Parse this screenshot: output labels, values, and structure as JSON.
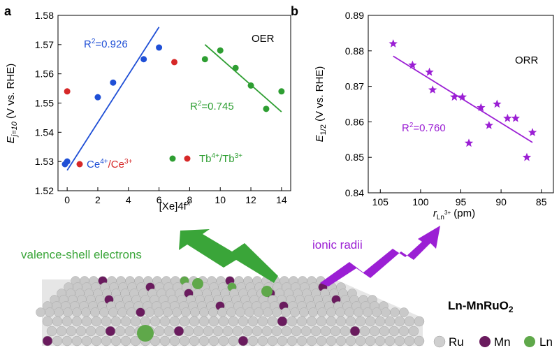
{
  "panel_a_label": "a",
  "panel_b_label": "b",
  "colors": {
    "blue": "#1f4fd6",
    "red": "#d62828",
    "green": "#2e9e32",
    "purple": "#9b1fd4",
    "mn": "#6a1b5e",
    "ru": "#c9c9c9",
    "ln": "#5fa84a"
  },
  "chart_data": [
    {
      "type": "scatter",
      "panel": "a",
      "ylabel": "E",
      "ylabel_sub": "j=10",
      "ylabel_rest": " (V vs. RHE)",
      "xlabel": "[Xe]4f",
      "xlabel_sup": "x",
      "xlim": [
        -0.6,
        14.6
      ],
      "ylim": [
        1.52,
        1.58
      ],
      "xticks": [
        "0",
        "2",
        "4",
        "6",
        "8",
        "10",
        "12",
        "14"
      ],
      "yticks": [
        "1.52",
        "1.53",
        "1.54",
        "1.55",
        "1.56",
        "1.57",
        "1.58"
      ],
      "annotation": "OER",
      "series": [
        {
          "name": "Ce4+/Ce3+",
          "color": "blue",
          "x": [
            0,
            2,
            3,
            5,
            6
          ],
          "y": [
            1.53,
            1.552,
            1.557,
            1.565,
            1.569
          ]
        },
        {
          "name": "Tb4+/Tb3+",
          "color": "green",
          "x": [
            9,
            10,
            11,
            12,
            13,
            14
          ],
          "y": [
            1.565,
            1.568,
            1.562,
            1.556,
            1.548,
            1.554
          ]
        },
        {
          "color": "red",
          "x": [
            0,
            7
          ],
          "y": [
            1.554,
            1.564
          ]
        }
      ],
      "fits": [
        {
          "color": "blue",
          "x": [
            0,
            6
          ],
          "y": [
            1.527,
            1.576
          ],
          "label": "R",
          "label_sup": "2",
          "label_rest": "=0.926"
        },
        {
          "color": "green",
          "x": [
            9,
            14
          ],
          "y": [
            1.57,
            1.547
          ],
          "label": "R",
          "label_sup": "2",
          "label_rest": "=0.745"
        }
      ],
      "legend": [
        {
          "base": "Ce",
          "sup1": "4+",
          "mid": "/Ce",
          "sup2": "3+"
        },
        {
          "base": "Tb",
          "sup1": "4+",
          "mid": "/Tb",
          "sup2": "3+"
        }
      ]
    },
    {
      "type": "scatter",
      "panel": "b",
      "ylabel": "E",
      "ylabel_sub": "1/2",
      "ylabel_rest": " (V vs. RHE)",
      "xlabel": "r",
      "xlabel_sub": "Ln",
      "xlabel_subsup": "3+",
      "xlabel_rest": " (pm)",
      "xlim": [
        106.5,
        83.5
      ],
      "ylim": [
        0.84,
        0.89
      ],
      "xticks": [
        "105",
        "100",
        "95",
        "90",
        "85"
      ],
      "yticks": [
        "0.84",
        "0.85",
        "0.86",
        "0.87",
        "0.88",
        "0.89"
      ],
      "annotation": "ORR",
      "series": [
        {
          "color": "purple",
          "x": [
            103.4,
            101.0,
            98.9,
            98.5,
            95.8,
            94.8,
            94.0,
            92.5,
            91.5,
            90.5,
            89.2,
            88.2,
            86.8,
            86.1
          ],
          "y": [
            0.882,
            0.876,
            0.874,
            0.869,
            0.867,
            0.867,
            0.854,
            0.864,
            0.859,
            0.865,
            0.861,
            0.861,
            0.85,
            0.857
          ]
        }
      ],
      "fits": [
        {
          "color": "purple",
          "x": [
            103.4,
            86.1
          ],
          "y": [
            0.8785,
            0.8542
          ],
          "label": "R",
          "label_sup": "2",
          "label_rest": "=0.760"
        }
      ]
    }
  ],
  "illustration": {
    "arrow_left_label": "valence-shell electrons",
    "arrow_right_label": "ionic radii",
    "title_main": "Ln-MnRuO",
    "title_sub": "2",
    "legend": [
      "Ru",
      "Mn",
      "Ln"
    ]
  }
}
